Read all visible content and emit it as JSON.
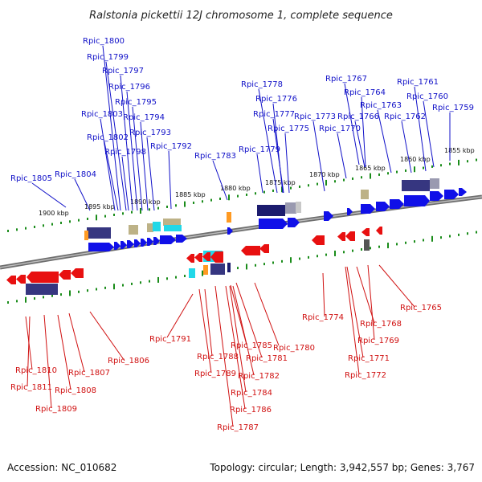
{
  "title": "Ralstonia pickettii 12J chromosome 1, complete sequence",
  "footer": {
    "accession": "Accession: NC_010682",
    "topology": "Topology: circular; Length: 3,942,557 bp; Genes: 3,767"
  },
  "colors": {
    "forward": "#1010e8",
    "reverse": "#e81010",
    "label_forward": "#1010c8",
    "label_reverse": "#d01010",
    "tick": "#1a8c1a",
    "backbone": "#888888",
    "feature_navy": "#363680",
    "feature_khaki": "#bdb287",
    "feature_cyan": "#22d8e8",
    "feature_orange": "#ff9a22",
    "feature_grey": "#9a9a9a"
  },
  "scale_labels": [
    "1900 kbp",
    "1895 kbp",
    "1890 kbp",
    "1885 kbp",
    "1880 kbp",
    "1875 kbp",
    "1870 kbp",
    "1865 kbp",
    "1860 kbp",
    "1855 kbp"
  ],
  "genes_forward": [
    "Rpic_1800",
    "Rpic_1799",
    "Rpic_1797",
    "Rpic_1796",
    "Rpic_1795",
    "Rpic_1803",
    "Rpic_1794",
    "Rpic_1793",
    "Rpic_1802",
    "Rpic_1798",
    "Rpic_1792",
    "Rpic_1783",
    "Rpic_1805",
    "Rpic_1804",
    "Rpic_1778",
    "Rpic_1776",
    "Rpic_1777",
    "Rpic_1775",
    "Rpic_1779",
    "Rpic_1767",
    "Rpic_1764",
    "Rpic_1766",
    "Rpic_1763",
    "Rpic_1770",
    "Rpic_1773",
    "Rpic_1761",
    "Rpic_1760",
    "Rpic_1762",
    "Rpic_1759"
  ],
  "genes_reverse": [
    "Rpic_1791",
    "Rpic_1788",
    "Rpic_1789",
    "Rpic_1785",
    "Rpic_1781",
    "Rpic_1780",
    "Rpic_1782",
    "Rpic_1784",
    "Rpic_1786",
    "Rpic_1787",
    "Rpic_1774",
    "Rpic_1765",
    "Rpic_1768",
    "Rpic_1769",
    "Rpic_1771",
    "Rpic_1772",
    "Rpic_1806",
    "Rpic_1807",
    "Rpic_1808",
    "Rpic_1809",
    "Rpic_1810",
    "Rpic_1811"
  ]
}
